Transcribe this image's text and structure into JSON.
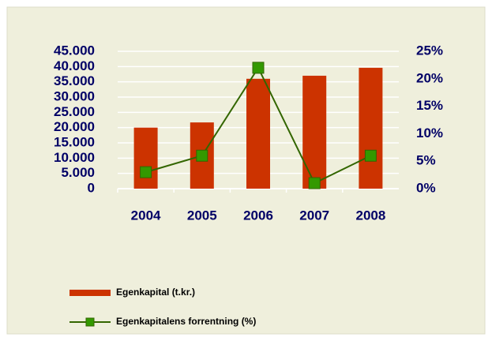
{
  "chart_data": {
    "type": "bar-line",
    "categories": [
      "2004",
      "2005",
      "2006",
      "2007",
      "2008"
    ],
    "series": [
      {
        "name": "Egenkapital (t.kr.)",
        "type": "bar",
        "color": "#cc3300",
        "values": [
          20000,
          21700,
          36000,
          37000,
          39600
        ]
      },
      {
        "name": "Egenkapitalens forrentning (%)",
        "type": "line",
        "axis": "y2",
        "color": "#336600",
        "marker_color": "#339900",
        "values": [
          3,
          6,
          22,
          1,
          6
        ]
      }
    ],
    "ylim": [
      0,
      45000
    ],
    "yticks": [
      0,
      {
        "value": 5000,
        "label": "5.000"
      },
      {
        "value": 10000,
        "label": "10.000"
      },
      {
        "value": 15000,
        "label": "15.000"
      },
      {
        "value": 20000,
        "label": "20.000"
      },
      {
        "value": 25000,
        "label": "25.000"
      },
      {
        "value": 30000,
        "label": "30.000"
      },
      {
        "value": 35000,
        "label": "35.000"
      },
      {
        "value": 40000,
        "label": "40.000"
      },
      {
        "value": 45000,
        "label": "45.000"
      }
    ],
    "y2lim": [
      0,
      25
    ],
    "y2ticks": [
      {
        "value": 0,
        "label": "0%"
      },
      {
        "value": 5,
        "label": "5%"
      },
      {
        "value": 10,
        "label": "10%"
      },
      {
        "value": 15,
        "label": "15%"
      },
      {
        "value": 20,
        "label": "20%"
      },
      {
        "value": 25,
        "label": "25%"
      }
    ],
    "grid": true,
    "legend": "bottom-left"
  }
}
